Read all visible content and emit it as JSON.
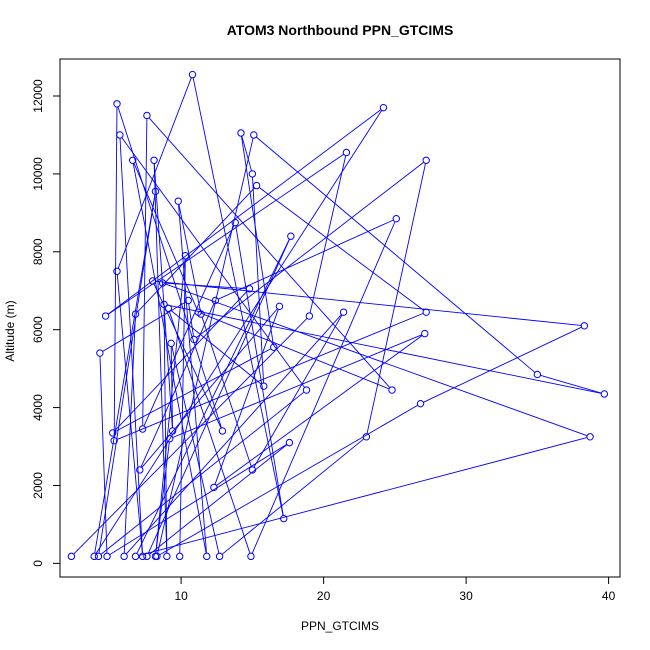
{
  "chart_data": {
    "type": "line",
    "title": "ATOM3 Northbound PPN_GTCIMS",
    "xlabel": "PPN_GTCIMS",
    "ylabel": "Altitude (m)",
    "xlim": [
      1.5,
      40.8
    ],
    "ylim": [
      -350,
      12950
    ],
    "x_ticks": [
      10,
      20,
      30,
      40
    ],
    "y_ticks": [
      0,
      2000,
      4000,
      6000,
      8000,
      10000,
      12000
    ],
    "grid": false,
    "legend": "none",
    "color": "#0000ff",
    "series": [
      {
        "values": [
          [
            2.3,
            180
          ],
          [
            19.0,
            6350
          ],
          [
            21.6,
            10550
          ],
          [
            4.7,
            6350
          ],
          [
            24.2,
            11700
          ],
          [
            3.9,
            180
          ],
          [
            8.2,
            9550
          ],
          [
            4.2,
            180
          ],
          [
            18.8,
            4450
          ],
          [
            5.7,
            11000
          ],
          [
            7.3,
            180
          ],
          [
            5.5,
            7500
          ],
          [
            10.8,
            12550
          ],
          [
            17.2,
            1150
          ],
          [
            13.8,
            8750
          ],
          [
            7.3,
            3450
          ],
          [
            7.6,
            11500
          ],
          [
            24.8,
            4450
          ],
          [
            11.2,
            6450
          ],
          [
            6.6,
            10350
          ],
          [
            11.8,
            180
          ],
          [
            9.8,
            9300
          ],
          [
            11.4,
            6400
          ],
          [
            15.0,
            2400
          ],
          [
            21.4,
            6450
          ],
          [
            6.0,
            180
          ],
          [
            6.8,
            6400
          ],
          [
            15.3,
            9700
          ],
          [
            27.2,
            6450
          ],
          [
            5.3,
            3150
          ],
          [
            5.5,
            11800
          ],
          [
            12.9,
            3400
          ],
          [
            8.0,
            7250
          ],
          [
            38.3,
            6100
          ],
          [
            26.8,
            4100
          ],
          [
            8.3,
            180
          ],
          [
            15.1,
            11000
          ],
          [
            35.0,
            4850
          ],
          [
            39.7,
            4350
          ],
          [
            8.8,
            6650
          ],
          [
            9.0,
            180
          ],
          [
            8.1,
            10350
          ],
          [
            9.4,
            3400
          ],
          [
            9.3,
            5650
          ],
          [
            12.7,
            180
          ],
          [
            23.0,
            3250
          ],
          [
            27.2,
            10350
          ],
          [
            10.9,
            5750
          ],
          [
            10.5,
            6750
          ],
          [
            4.3,
            5400
          ],
          [
            4.8,
            180
          ],
          [
            17.6,
            3100
          ],
          [
            7.6,
            180
          ],
          [
            17.7,
            8400
          ],
          [
            6.8,
            180
          ],
          [
            38.7,
            3250
          ],
          [
            8.7,
            7200
          ],
          [
            14.8,
            7050
          ],
          [
            5.2,
            3350
          ],
          [
            16.5,
            5550
          ],
          [
            14.2,
            11050
          ],
          [
            15.0,
            10000
          ],
          [
            15.8,
            4550
          ],
          [
            9.1,
            6550
          ],
          [
            14.9,
            180
          ],
          [
            25.1,
            8850
          ],
          [
            12.4,
            6750
          ],
          [
            7.1,
            2400
          ],
          [
            16.9,
            6600
          ],
          [
            12.3,
            1950
          ],
          [
            27.1,
            5900
          ],
          [
            9.2,
            3200
          ],
          [
            8.2,
            180
          ],
          [
            10.3,
            7900
          ],
          [
            9.9,
            180
          ]
        ]
      }
    ]
  }
}
